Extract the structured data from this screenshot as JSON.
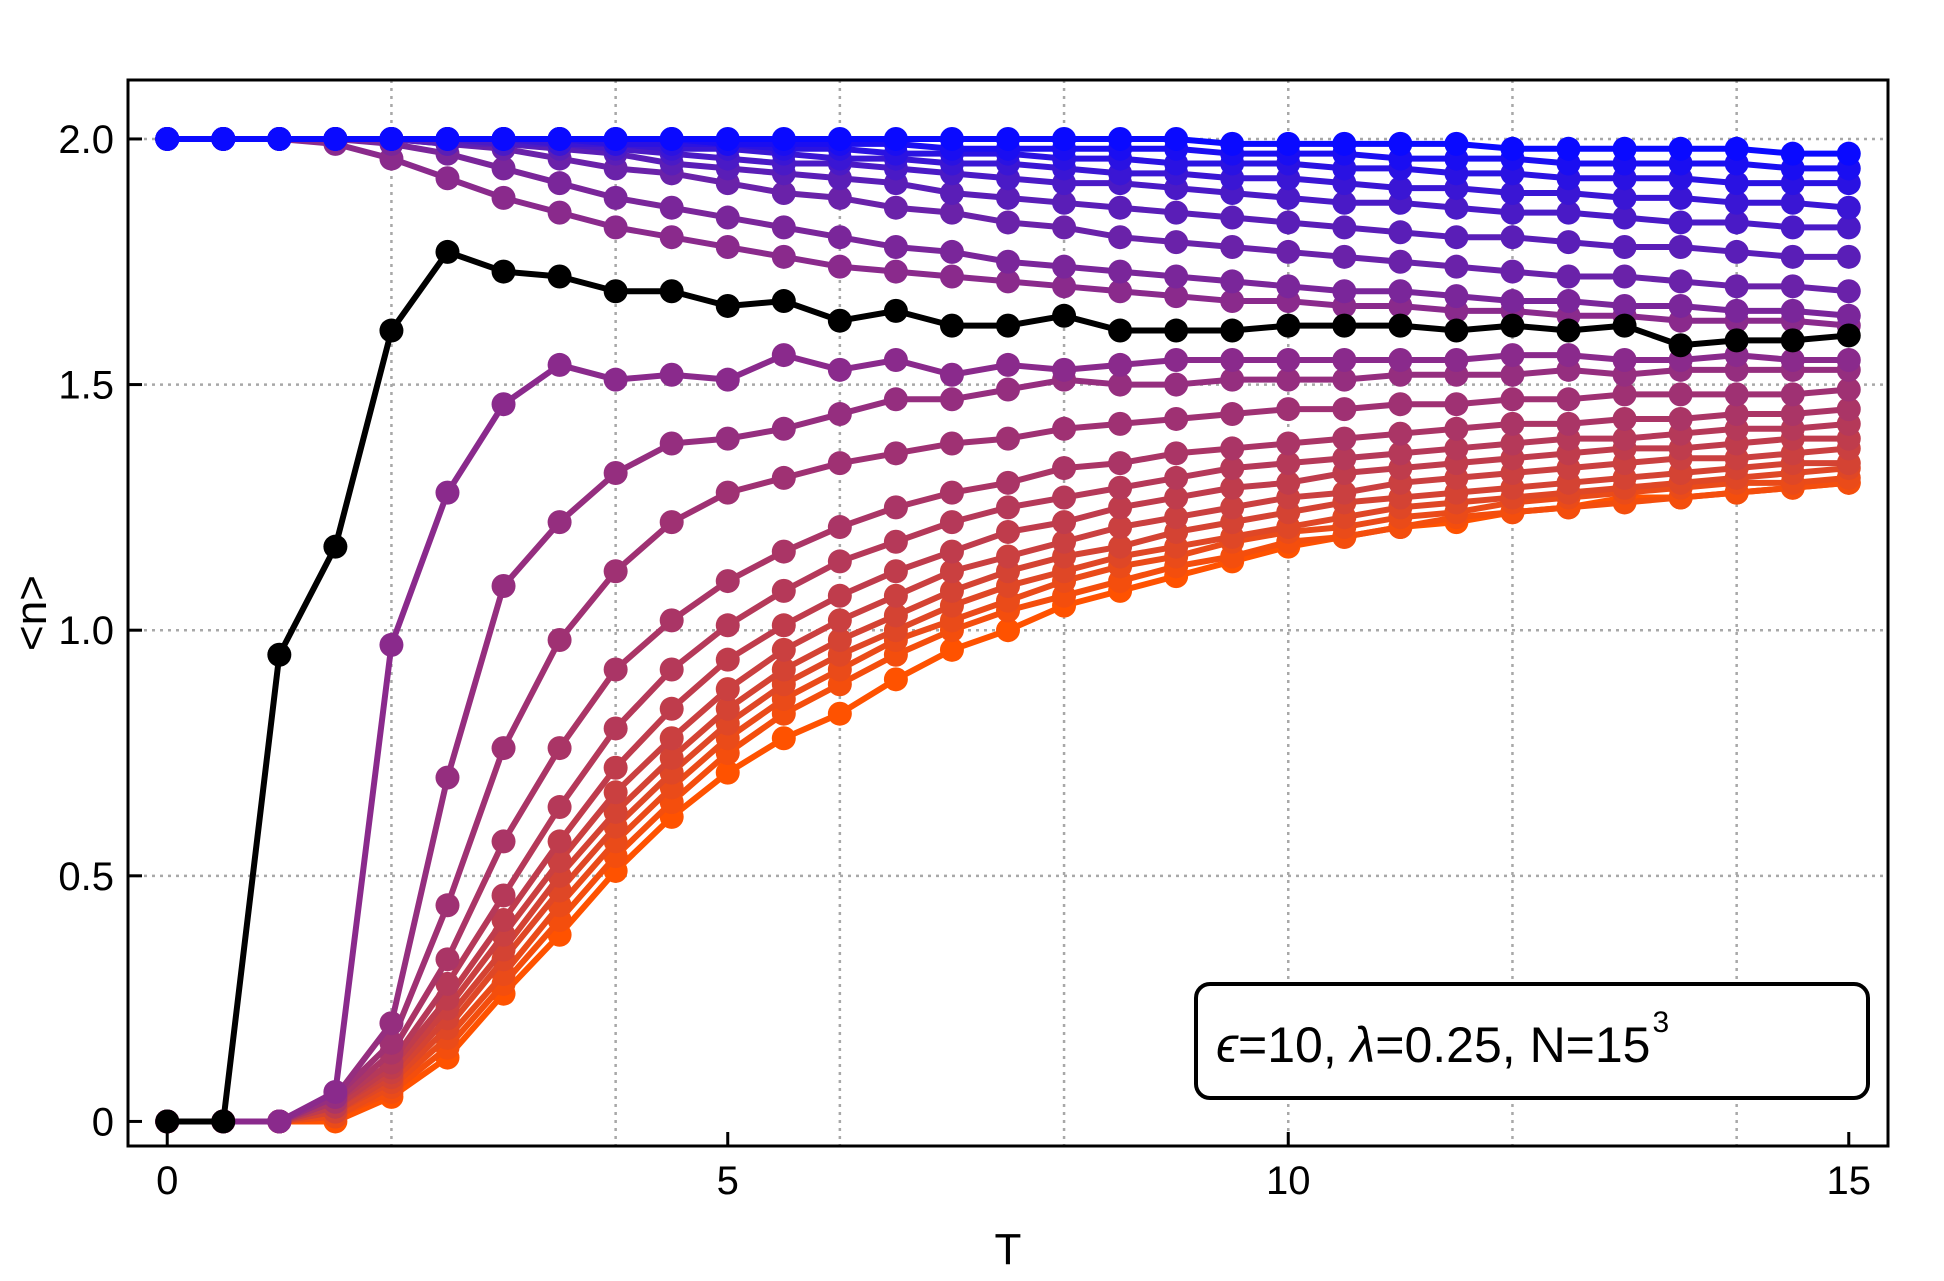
{
  "chart_data": {
    "type": "line",
    "title": "",
    "xlabel": "T",
    "ylabel": "<n>",
    "xlim": [
      -0.35,
      15.35
    ],
    "ylim": [
      -0.05,
      2.12
    ],
    "xticks": [
      0,
      5,
      10,
      15
    ],
    "xtick_labels": [
      "0",
      "5",
      "10",
      "15"
    ],
    "yticks": [
      0,
      0.5,
      1.0,
      1.5,
      2.0
    ],
    "ytick_labels": [
      "0",
      "0.5",
      "1.0",
      "1.5",
      "2.0"
    ],
    "x_gridlines": [
      2,
      4,
      6,
      8,
      10,
      12,
      14
    ],
    "y_gridlines": [
      0.5,
      1.0,
      1.5,
      2.0
    ],
    "grid": true,
    "annotation": {
      "epsilon_symbol": "ϵ",
      "lambda_symbol": "λ",
      "part1": "=10, ",
      "part2": "=0.25, N=15",
      "superscript": "3"
    },
    "legend_position": "bottom-right",
    "x": [
      0,
      0.5,
      1,
      1.5,
      2,
      2.5,
      3,
      3.5,
      4,
      4.5,
      5,
      5.5,
      6,
      6.5,
      7,
      7.5,
      8,
      8.5,
      9,
      9.5,
      10,
      10.5,
      11,
      11.5,
      12,
      12.5,
      13,
      13.5,
      14,
      14.5,
      15
    ],
    "highlighted_series": {
      "color": "#000000",
      "values": [
        0,
        0,
        0.95,
        1.17,
        1.61,
        1.77,
        1.73,
        1.72,
        1.69,
        1.69,
        1.66,
        1.67,
        1.63,
        1.65,
        1.62,
        1.62,
        1.64,
        1.61,
        1.61,
        1.61,
        1.62,
        1.62,
        1.62,
        1.61,
        1.62,
        1.61,
        1.62,
        1.58,
        1.59,
        1.59,
        1.6
      ]
    },
    "upper_family": {
      "color_start": "#0a0aff",
      "color_end": "#8a2a8c",
      "series": [
        {
          "values": [
            2,
            2,
            2,
            2,
            2,
            2,
            2,
            2,
            2,
            2,
            2,
            2,
            2,
            2,
            2,
            2,
            2,
            2,
            2,
            1.99,
            1.99,
            1.99,
            1.99,
            1.99,
            1.98,
            1.98,
            1.98,
            1.98,
            1.98,
            1.97,
            1.97
          ]
        },
        {
          "values": [
            2,
            2,
            2,
            2,
            2,
            2,
            2,
            2,
            2,
            2,
            1.99,
            1.99,
            1.99,
            1.99,
            1.98,
            1.98,
            1.98,
            1.98,
            1.98,
            1.97,
            1.97,
            1.97,
            1.96,
            1.96,
            1.96,
            1.95,
            1.95,
            1.95,
            1.95,
            1.94,
            1.94
          ]
        },
        {
          "values": [
            2,
            2,
            2,
            2,
            2,
            2,
            2,
            2,
            1.99,
            1.99,
            1.99,
            1.98,
            1.98,
            1.97,
            1.97,
            1.97,
            1.96,
            1.96,
            1.95,
            1.95,
            1.95,
            1.94,
            1.94,
            1.93,
            1.93,
            1.92,
            1.92,
            1.92,
            1.91,
            1.91,
            1.91
          ]
        },
        {
          "values": [
            2,
            2,
            2,
            2,
            2,
            2,
            2,
            1.99,
            1.99,
            1.98,
            1.98,
            1.97,
            1.96,
            1.96,
            1.95,
            1.95,
            1.94,
            1.93,
            1.93,
            1.92,
            1.92,
            1.91,
            1.9,
            1.9,
            1.89,
            1.89,
            1.88,
            1.88,
            1.87,
            1.87,
            1.86
          ]
        },
        {
          "values": [
            2,
            2,
            2,
            2,
            2,
            2,
            1.99,
            1.99,
            1.98,
            1.97,
            1.96,
            1.95,
            1.95,
            1.94,
            1.93,
            1.92,
            1.91,
            1.91,
            1.9,
            1.89,
            1.88,
            1.87,
            1.87,
            1.86,
            1.85,
            1.85,
            1.84,
            1.83,
            1.83,
            1.82,
            1.82
          ]
        },
        {
          "values": [
            2,
            2,
            2,
            2,
            2,
            1.99,
            1.99,
            1.98,
            1.97,
            1.95,
            1.94,
            1.93,
            1.92,
            1.91,
            1.89,
            1.88,
            1.87,
            1.86,
            1.85,
            1.84,
            1.83,
            1.82,
            1.81,
            1.8,
            1.8,
            1.79,
            1.78,
            1.78,
            1.77,
            1.76,
            1.76
          ]
        },
        {
          "values": [
            2,
            2,
            2,
            2,
            2,
            1.99,
            1.98,
            1.96,
            1.94,
            1.93,
            1.91,
            1.89,
            1.88,
            1.86,
            1.85,
            1.83,
            1.82,
            1.8,
            1.79,
            1.78,
            1.77,
            1.76,
            1.75,
            1.74,
            1.73,
            1.72,
            1.72,
            1.71,
            1.7,
            1.7,
            1.69
          ]
        },
        {
          "values": [
            2,
            2,
            2,
            2,
            1.99,
            1.97,
            1.94,
            1.91,
            1.88,
            1.86,
            1.84,
            1.82,
            1.8,
            1.78,
            1.77,
            1.75,
            1.74,
            1.73,
            1.72,
            1.71,
            1.7,
            1.69,
            1.69,
            1.68,
            1.67,
            1.67,
            1.66,
            1.66,
            1.65,
            1.65,
            1.64
          ]
        },
        {
          "values": [
            2,
            2,
            2,
            1.99,
            1.96,
            1.92,
            1.88,
            1.85,
            1.82,
            1.8,
            1.78,
            1.76,
            1.74,
            1.73,
            1.72,
            1.71,
            1.7,
            1.69,
            1.68,
            1.67,
            1.67,
            1.66,
            1.66,
            1.65,
            1.65,
            1.64,
            1.64,
            1.63,
            1.63,
            1.63,
            1.62
          ]
        }
      ]
    },
    "lower_family": {
      "color_start": "#8a2a8c",
      "color_end": "#ff5200",
      "series": [
        {
          "values": [
            0,
            0,
            0,
            0.06,
            0.97,
            1.28,
            1.46,
            1.54,
            1.51,
            1.52,
            1.51,
            1.56,
            1.53,
            1.55,
            1.52,
            1.54,
            1.53,
            1.54,
            1.55,
            1.55,
            1.55,
            1.55,
            1.55,
            1.55,
            1.56,
            1.56,
            1.55,
            1.55,
            1.56,
            1.55,
            1.55
          ]
        },
        {
          "values": [
            0,
            0,
            0,
            0.05,
            0.2,
            0.7,
            1.09,
            1.22,
            1.32,
            1.38,
            1.39,
            1.41,
            1.44,
            1.47,
            1.47,
            1.49,
            1.51,
            1.5,
            1.5,
            1.51,
            1.51,
            1.51,
            1.52,
            1.52,
            1.52,
            1.53,
            1.52,
            1.53,
            1.53,
            1.53,
            1.53
          ]
        },
        {
          "values": [
            0,
            0,
            0,
            0.05,
            0.16,
            0.44,
            0.76,
            0.98,
            1.12,
            1.22,
            1.28,
            1.31,
            1.34,
            1.36,
            1.38,
            1.39,
            1.41,
            1.42,
            1.43,
            1.44,
            1.45,
            1.45,
            1.46,
            1.46,
            1.47,
            1.47,
            1.48,
            1.48,
            1.48,
            1.48,
            1.49
          ]
        },
        {
          "values": [
            0,
            0,
            0,
            0.04,
            0.14,
            0.33,
            0.57,
            0.76,
            0.92,
            1.02,
            1.1,
            1.16,
            1.21,
            1.25,
            1.28,
            1.3,
            1.33,
            1.34,
            1.36,
            1.37,
            1.38,
            1.39,
            1.4,
            1.41,
            1.42,
            1.42,
            1.43,
            1.43,
            1.44,
            1.44,
            1.45
          ]
        },
        {
          "values": [
            0,
            0,
            0,
            0.04,
            0.12,
            0.28,
            0.46,
            0.64,
            0.8,
            0.92,
            1.01,
            1.08,
            1.14,
            1.18,
            1.22,
            1.25,
            1.27,
            1.29,
            1.31,
            1.33,
            1.34,
            1.35,
            1.36,
            1.37,
            1.38,
            1.39,
            1.39,
            1.4,
            1.41,
            1.41,
            1.42
          ]
        },
        {
          "values": [
            0,
            0,
            0,
            0.03,
            0.11,
            0.25,
            0.41,
            0.57,
            0.72,
            0.84,
            0.94,
            1.01,
            1.07,
            1.12,
            1.16,
            1.2,
            1.22,
            1.25,
            1.27,
            1.29,
            1.3,
            1.32,
            1.33,
            1.34,
            1.35,
            1.36,
            1.37,
            1.37,
            1.38,
            1.39,
            1.39
          ]
        },
        {
          "values": [
            0,
            0,
            0,
            0.03,
            0.1,
            0.23,
            0.38,
            0.53,
            0.67,
            0.78,
            0.88,
            0.96,
            1.02,
            1.07,
            1.12,
            1.15,
            1.18,
            1.21,
            1.23,
            1.25,
            1.27,
            1.28,
            1.3,
            1.31,
            1.32,
            1.33,
            1.34,
            1.35,
            1.35,
            1.36,
            1.37
          ]
        },
        {
          "values": [
            0,
            0,
            0,
            0.02,
            0.09,
            0.21,
            0.35,
            0.5,
            0.63,
            0.74,
            0.84,
            0.92,
            0.98,
            1.03,
            1.08,
            1.12,
            1.15,
            1.17,
            1.2,
            1.22,
            1.24,
            1.26,
            1.27,
            1.28,
            1.29,
            1.3,
            1.31,
            1.32,
            1.33,
            1.34,
            1.34
          ]
        },
        {
          "values": [
            0,
            0,
            0,
            0.02,
            0.08,
            0.19,
            0.33,
            0.47,
            0.6,
            0.71,
            0.81,
            0.89,
            0.95,
            1.0,
            1.05,
            1.09,
            1.12,
            1.15,
            1.17,
            1.19,
            1.21,
            1.23,
            1.25,
            1.26,
            1.27,
            1.28,
            1.29,
            1.3,
            1.31,
            1.32,
            1.33
          ]
        },
        {
          "values": [
            0,
            0,
            0,
            0.01,
            0.07,
            0.17,
            0.3,
            0.44,
            0.57,
            0.68,
            0.78,
            0.86,
            0.92,
            0.98,
            1.02,
            1.06,
            1.1,
            1.13,
            1.15,
            1.18,
            1.2,
            1.21,
            1.23,
            1.24,
            1.26,
            1.27,
            1.28,
            1.29,
            1.3,
            1.3,
            1.31
          ]
        },
        {
          "values": [
            0,
            0,
            0,
            0.01,
            0.06,
            0.15,
            0.28,
            0.41,
            0.54,
            0.65,
            0.75,
            0.83,
            0.89,
            0.95,
            1.0,
            1.04,
            1.07,
            1.1,
            1.13,
            1.15,
            1.18,
            1.19,
            1.21,
            1.23,
            1.24,
            1.25,
            1.26,
            1.27,
            1.28,
            1.29,
            1.3
          ]
        },
        {
          "values": [
            0,
            0,
            0,
            0.0,
            0.05,
            0.13,
            0.26,
            0.38,
            0.51,
            0.62,
            0.71,
            0.78,
            0.83,
            0.9,
            0.96,
            1.0,
            1.05,
            1.08,
            1.11,
            1.14,
            1.17,
            1.19,
            1.21,
            1.22,
            1.24,
            1.25,
            1.27,
            1.27,
            1.28,
            1.29,
            1.3
          ]
        }
      ]
    }
  }
}
